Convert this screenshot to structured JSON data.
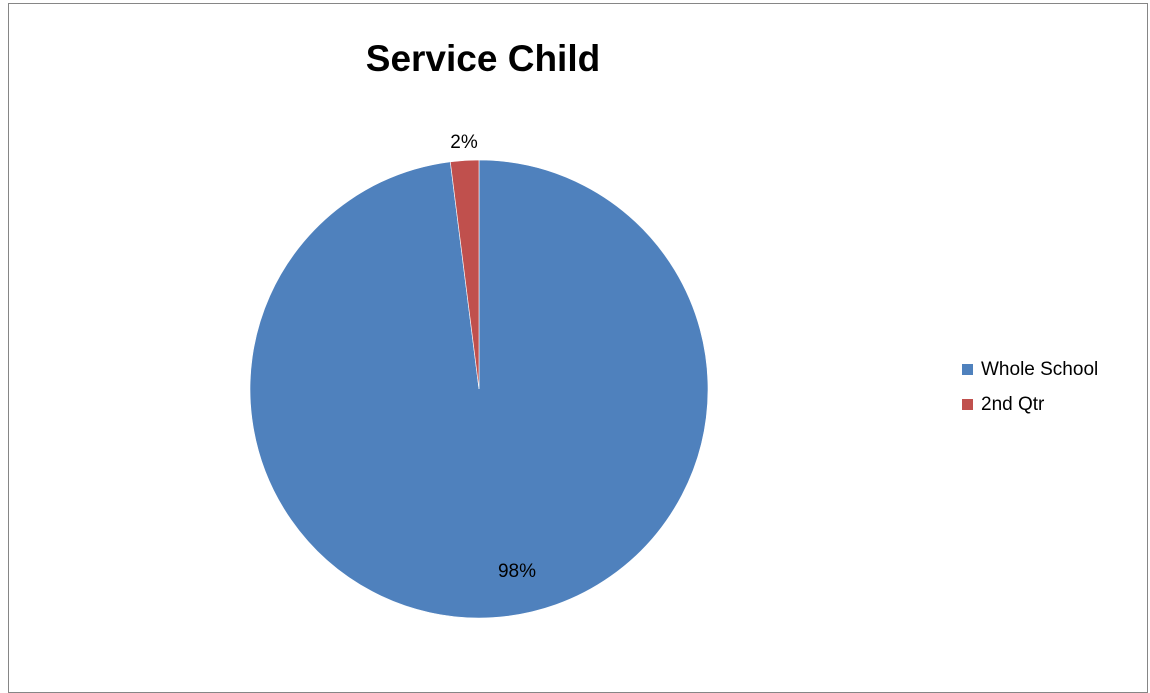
{
  "chart_data": {
    "type": "pie",
    "title": "Service Child",
    "categories": [
      "Whole School",
      "2nd Qtr"
    ],
    "values": [
      98,
      2
    ],
    "data_labels": [
      "98%",
      "2%"
    ],
    "colors": [
      "#4F81BD",
      "#C0504D"
    ],
    "legend_position": "right"
  }
}
